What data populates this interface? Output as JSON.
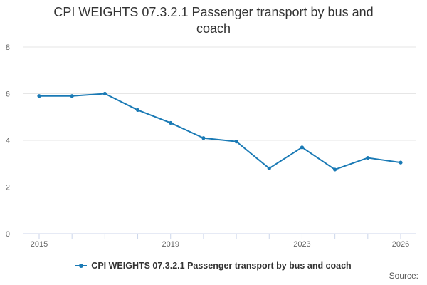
{
  "chart_data": {
    "type": "line",
    "title": "CPI WEIGHTS 07.3.2.1 Passenger transport by bus and coach",
    "x": [
      2015,
      2016,
      2017,
      2018,
      2019,
      2020,
      2021,
      2022,
      2023,
      2024,
      2025,
      2026
    ],
    "series": [
      {
        "name": "CPI WEIGHTS 07.3.2.1 Passenger transport by bus and coach",
        "values": [
          5.9,
          5.9,
          6.0,
          5.3,
          4.75,
          4.1,
          3.95,
          2.8,
          3.7,
          2.75,
          3.25,
          3.05
        ],
        "color": "#1a7ab5"
      }
    ],
    "xticks": [
      "2015",
      "2019",
      "2023",
      "2026"
    ],
    "yticks": [
      "0",
      "2",
      "4",
      "6",
      "8"
    ],
    "xlim": [
      2015,
      2026
    ],
    "ylim": [
      0,
      8
    ],
    "grid": true,
    "legend": "bottom-center"
  },
  "credits": "Source:"
}
